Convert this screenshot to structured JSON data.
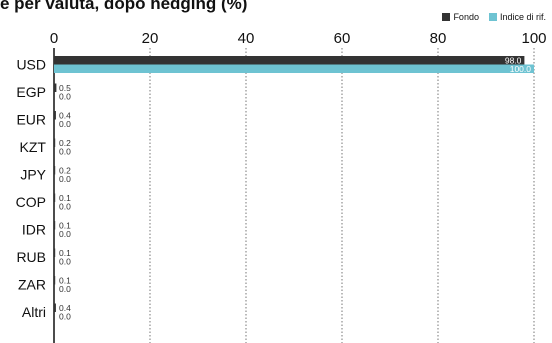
{
  "title": "e per valuta, dopo hedging (%)",
  "legend": [
    {
      "name": "Fondo",
      "color": "#333333"
    },
    {
      "name": "Indice di rif.",
      "color": "#6ec3d2"
    }
  ],
  "chart_data": {
    "type": "bar",
    "orientation": "horizontal",
    "title": "e per valuta, dopo hedging (%)",
    "categories": [
      "USD",
      "EGP",
      "EUR",
      "KZT",
      "JPY",
      "COP",
      "IDR",
      "RUB",
      "ZAR",
      "Altri"
    ],
    "series": [
      {
        "name": "Fondo",
        "color": "#333333",
        "values": [
          98.0,
          0.5,
          0.4,
          0.2,
          0.2,
          0.1,
          0.1,
          0.1,
          0.1,
          0.4
        ]
      },
      {
        "name": "Indice di rif.",
        "color": "#6ec3d2",
        "values": [
          100.0,
          0.0,
          0.0,
          0.0,
          0.0,
          0.0,
          0.0,
          0.0,
          0.0,
          0.0
        ]
      }
    ],
    "xlim": [
      0,
      100
    ],
    "xticks": [
      0,
      20,
      40,
      60,
      80,
      100
    ],
    "grid": "vertical-dotted",
    "legend_position": "top-right"
  }
}
